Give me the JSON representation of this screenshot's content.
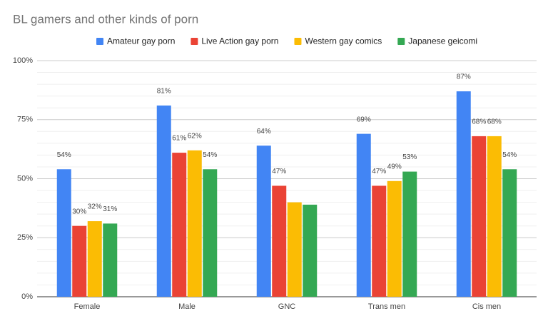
{
  "chart_data": {
    "type": "bar",
    "title": "BL gamers and other kinds of porn",
    "categories": [
      "Female",
      "Male",
      "GNC",
      "Trans men",
      "Cis men"
    ],
    "series": [
      {
        "name": "Amateur gay porn",
        "color": "#4285f4",
        "values": [
          54,
          81,
          64,
          69,
          87
        ],
        "value_labels": [
          "54%",
          "81%",
          "64%",
          "69%",
          "87%"
        ]
      },
      {
        "name": "Live Action gay porn",
        "color": "#ea4335",
        "values": [
          30,
          61,
          47,
          47,
          68
        ],
        "value_labels": [
          "30%",
          "61%",
          "47%",
          "47%",
          "68%"
        ]
      },
      {
        "name": "Western gay comics",
        "color": "#fbbc04",
        "values": [
          32,
          62,
          40,
          49,
          68
        ],
        "value_labels": [
          "32%",
          "62%",
          null,
          "49%",
          "68%"
        ]
      },
      {
        "name": "Japanese geicomi",
        "color": "#34a853",
        "values": [
          31,
          54,
          39,
          53,
          54
        ],
        "value_labels": [
          "31%",
          "54%",
          null,
          "53%",
          "54%"
        ]
      }
    ],
    "ylim": [
      0,
      100
    ],
    "yticks": [
      {
        "value": 0,
        "label": "0%"
      },
      {
        "value": 25,
        "label": "25%"
      },
      {
        "value": 50,
        "label": "50%"
      },
      {
        "value": 75,
        "label": "75%"
      },
      {
        "value": 100,
        "label": "100%"
      }
    ],
    "grid": true,
    "legend": "top"
  }
}
